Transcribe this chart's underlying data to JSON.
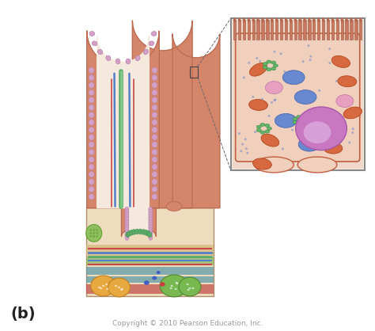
{
  "bg_color": "#ffffff",
  "label_b": "(b)",
  "label_b_fontsize": 14,
  "copyright_text": "Copyright © 2010 Pearson Education, Inc.",
  "copyright_fontsize": 6.5,
  "copyright_color": "#999999",
  "villus_color": "#d4856a",
  "villus_outline": "#b86a52",
  "inner_lining_color": "#d4a0c8",
  "inner_lining_outline": "#b080a8",
  "interior_color": "#f5e8dc",
  "lactal_color": "#5aaa6a",
  "capillary_color": "#5080c8",
  "artery_color": "#c84848",
  "base_color": "#eddcbe",
  "base_outline": "#c8b090",
  "inset_bg": "#f0e8d8",
  "inset_border_color": "#888888",
  "inset_microvilli_color": "#c87860",
  "inset_cell_bg": "#f0d0bc",
  "inset_nucleus_color": "#b878b8",
  "inset_cell_outline": "#c06040"
}
